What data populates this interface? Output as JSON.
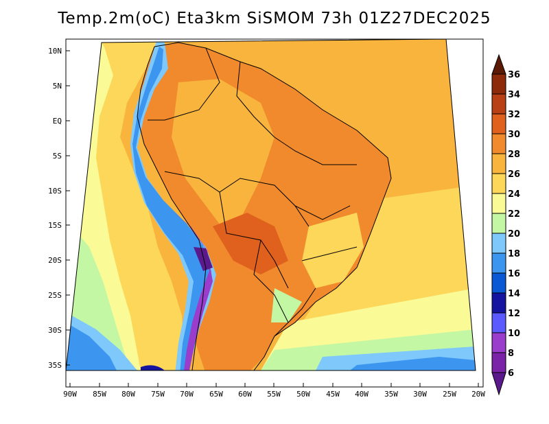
{
  "header": {
    "title": "Temp.2m(oC) Eta3km SiSMOM 73h 01Z27DEC2025"
  },
  "axes": {
    "lat_ticks": [
      "10N",
      "5N",
      "EQ",
      "5S",
      "10S",
      "15S",
      "20S",
      "25S",
      "30S",
      "35S"
    ],
    "lon_ticks": [
      "90W",
      "85W",
      "80W",
      "75W",
      "70W",
      "65W",
      "60W",
      "55W",
      "50W",
      "45W",
      "40W",
      "35W",
      "30W",
      "25W",
      "20W"
    ]
  },
  "colorbar": {
    "levels": [
      "6",
      "8",
      "10",
      "12",
      "14",
      "16",
      "18",
      "20",
      "22",
      "24",
      "26",
      "28",
      "30",
      "32",
      "34",
      "36"
    ],
    "colors": {
      "below_6": "#5a1a8c",
      "6_8": "#7a22a8",
      "8_10": "#9a3ccc",
      "10_12": "#5a5aff",
      "12_14": "#1414a0",
      "14_16": "#0a58d4",
      "16_18": "#3c96f0",
      "18_20": "#7ec8fc",
      "20_22": "#c4f7a4",
      "22_24": "#fafa96",
      "24_26": "#fcd75a",
      "26_28": "#f8b43c",
      "28_30": "#f08a2c",
      "30_32": "#e0601e",
      "32_34": "#b84014",
      "34_36": "#8c2a0a",
      "above_36": "#5a1a06"
    }
  }
}
